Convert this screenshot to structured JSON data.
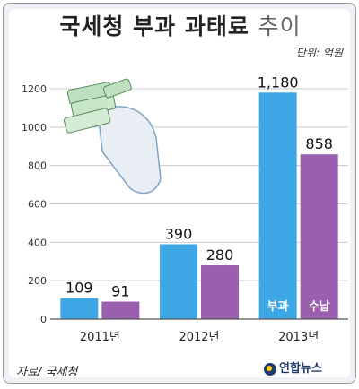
{
  "title_main": "국세청 부과 과태료",
  "title_suffix": "추이",
  "unit": "단위: 억원",
  "source": "자료/ 국세청",
  "logo": "연합뉴스",
  "colors": {
    "imposed": "#3ea8e6",
    "collected": "#9b5fb0",
    "grid": "#c9c9c9"
  },
  "icon": "money-and-bill-icon",
  "chart_data": {
    "type": "bar",
    "categories": [
      "2011년",
      "2012년",
      "2013년"
    ],
    "series": [
      {
        "name": "부과",
        "values": [
          109,
          390,
          1180
        ],
        "labels": [
          "109",
          "390",
          "1,180"
        ]
      },
      {
        "name": "수납",
        "values": [
          91,
          280,
          858
        ],
        "labels": [
          "91",
          "280",
          "858"
        ]
      }
    ],
    "ylim": [
      0,
      1200
    ],
    "yticks": [
      "0",
      "200",
      "400",
      "600",
      "800",
      "1000",
      "1200"
    ],
    "grid": true
  }
}
